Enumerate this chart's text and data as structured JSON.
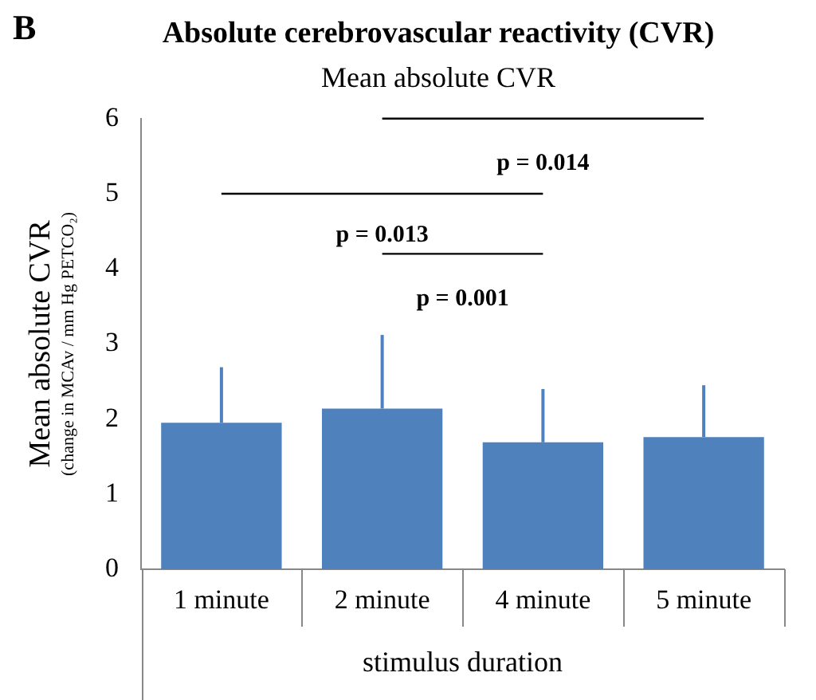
{
  "chart_data": {
    "type": "bar",
    "title": "Absolute cerebrovascular reactivity (CVR)",
    "subtitle": "Mean absolute CVR",
    "ylabel": "Mean absolute CVR\n(change in MCAv / mm Hg PETCO₂)",
    "xlabel": "stimulus duration",
    "categories": [
      "1 minute",
      "2 minute",
      "4 minute",
      "5 minute"
    ],
    "values": [
      1.95,
      2.14,
      1.69,
      1.76
    ],
    "errors": [
      [
        1.95,
        2.69
      ],
      [
        2.14,
        3.12
      ],
      [
        1.69,
        2.4
      ],
      [
        1.76,
        2.45
      ]
    ],
    "color": "#4f81bd",
    "ylim": [
      0,
      6
    ],
    "yticks": [
      0,
      1,
      2,
      3,
      4,
      5,
      6
    ],
    "grid": false,
    "legend": false,
    "annotations": [
      "B",
      "p = 0.014",
      "p = 0.013",
      "p = 0.001"
    ]
  }
}
